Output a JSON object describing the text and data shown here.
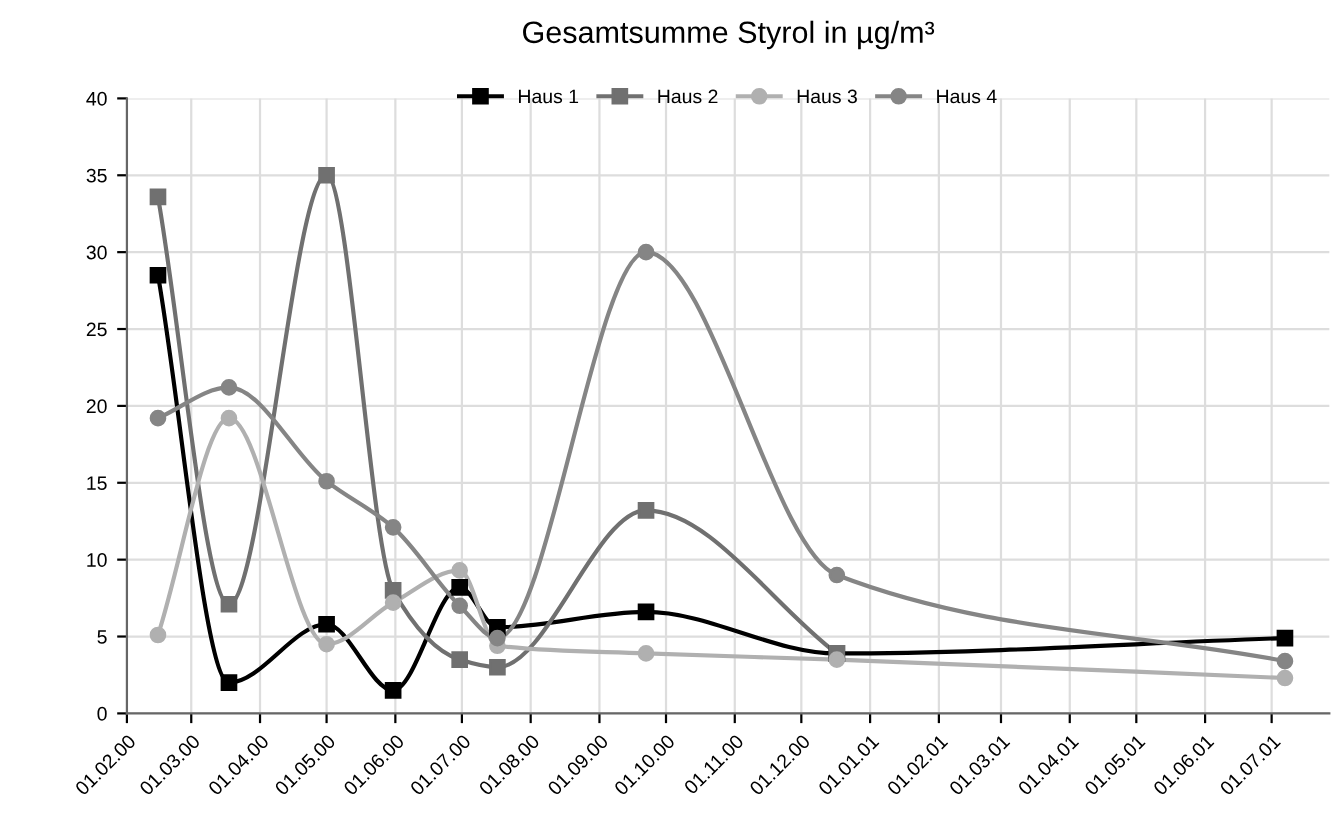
{
  "chart_data": {
    "type": "line",
    "title": "Gesamtsumme Styrol in µg/m³",
    "x": [
      "2000-02-15",
      "2000-03-18",
      "2000-05-01",
      "2000-05-31",
      "2000-06-30",
      "2000-07-17",
      "2000-09-22",
      "2000-12-17",
      "2001-07-07"
    ],
    "series": [
      {
        "name": "Haus 1",
        "color": "#000000",
        "marker": "square",
        "values": [
          28.5,
          2.0,
          5.8,
          1.5,
          8.2,
          5.6,
          6.6,
          3.9,
          4.9
        ]
      },
      {
        "name": "Haus 2",
        "color": "#707070",
        "marker": "square",
        "values": [
          33.6,
          7.1,
          35.0,
          8.0,
          3.5,
          3.0,
          13.2,
          3.9,
          null
        ]
      },
      {
        "name": "Haus 3",
        "color": "#b0b0b0",
        "marker": "circle",
        "values": [
          5.1,
          19.2,
          4.5,
          7.2,
          9.3,
          4.4,
          3.9,
          3.5,
          2.3
        ]
      },
      {
        "name": "Haus 4",
        "color": "#858585",
        "marker": "circle",
        "values": [
          19.2,
          21.2,
          15.1,
          12.1,
          7.0,
          4.9,
          30.0,
          9.0,
          3.4
        ]
      }
    ],
    "xlim": [
      "2000-02-01",
      "2001-07-27"
    ],
    "xticks": [
      {
        "value": "2000-02-01",
        "label": "01.02.00"
      },
      {
        "value": "2000-03-01",
        "label": "01.03.00"
      },
      {
        "value": "2000-04-01",
        "label": "01.04.00"
      },
      {
        "value": "2000-05-01",
        "label": "01.05.00"
      },
      {
        "value": "2000-06-01",
        "label": "01.06.00"
      },
      {
        "value": "2000-07-01",
        "label": "01.07.00"
      },
      {
        "value": "2000-08-01",
        "label": "01.08.00"
      },
      {
        "value": "2000-09-01",
        "label": "01.09.00"
      },
      {
        "value": "2000-10-01",
        "label": "01.10.00"
      },
      {
        "value": "2000-11-01",
        "label": "01.11.00"
      },
      {
        "value": "2000-12-01",
        "label": "01.12.00"
      },
      {
        "value": "2001-01-01",
        "label": "01.01.01"
      },
      {
        "value": "2001-02-01",
        "label": "01.02.01"
      },
      {
        "value": "2001-03-01",
        "label": "01.03.01"
      },
      {
        "value": "2001-04-01",
        "label": "01.04.01"
      },
      {
        "value": "2001-05-01",
        "label": "01.05.01"
      },
      {
        "value": "2001-06-01",
        "label": "01.06.01"
      },
      {
        "value": "2001-07-01",
        "label": "01.07.01"
      }
    ],
    "ylim": [
      0,
      40
    ],
    "yticks": [
      0,
      5,
      10,
      15,
      20,
      25,
      30,
      35,
      40
    ],
    "grid": true,
    "legend": "top",
    "line_style": "solid"
  }
}
